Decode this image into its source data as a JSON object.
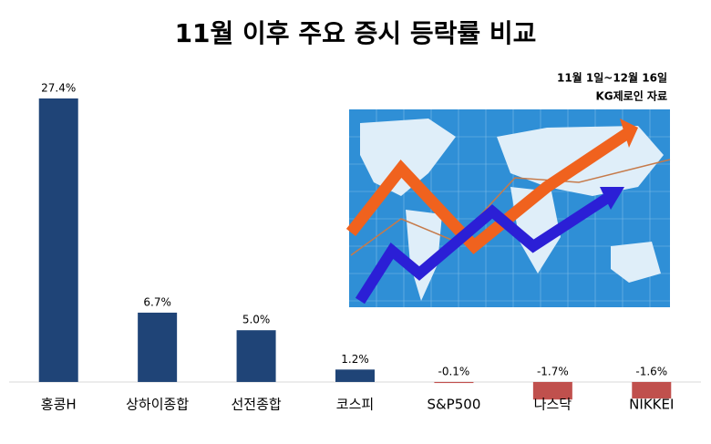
{
  "chart_data": {
    "type": "bar",
    "title": "11월 이후 주요 증시 등락률 비교",
    "subtitle": "11월 1일~12월 16일",
    "source": "KG제로인 자료",
    "categories": [
      "홍콩H",
      "상하이종합",
      "선전종합",
      "코스피",
      "S&P500",
      "나스닥",
      "NIKKEI"
    ],
    "values": [
      27.4,
      6.7,
      5.0,
      1.2,
      -0.1,
      -1.7,
      -1.6
    ],
    "value_labels": [
      "27.4%",
      "6.7%",
      "5.0%",
      "1.2%",
      "-0.1%",
      "-1.7%",
      "-1.6%"
    ],
    "color": "#1f4477",
    "negative_color": "#c0504d",
    "ylim": [
      -3,
      30
    ]
  }
}
